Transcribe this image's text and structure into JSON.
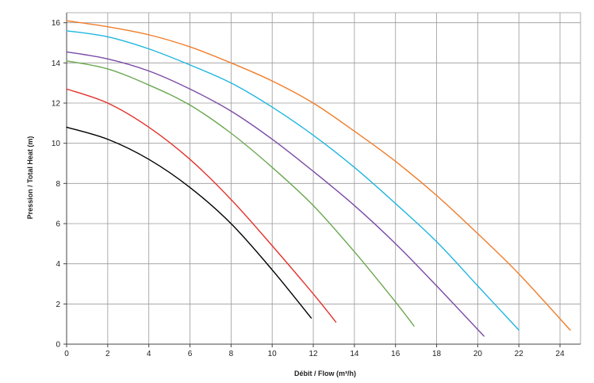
{
  "chart_data": {
    "type": "line",
    "xlabel": "Débit / Flow (m³/h)",
    "ylabel": "Pression / Total Heat (m)",
    "xlim": [
      0,
      25
    ],
    "ylim": [
      0,
      16.5
    ],
    "xticks": [
      0,
      2,
      4,
      6,
      8,
      10,
      12,
      14,
      16,
      18,
      20,
      22,
      24
    ],
    "yticks": [
      0,
      2,
      4,
      6,
      8,
      10,
      12,
      14,
      16
    ],
    "grid": true,
    "series": [
      {
        "color": "#000000",
        "x": [
          0,
          2,
          4,
          6,
          8,
          10,
          11.9
        ],
        "y": [
          10.8,
          10.2,
          9.2,
          7.8,
          6.0,
          3.7,
          1.3
        ]
      },
      {
        "color": "#e3322b",
        "x": [
          0,
          2,
          4,
          6,
          8,
          10,
          12,
          13.1
        ],
        "y": [
          12.7,
          12.0,
          10.8,
          9.2,
          7.2,
          4.9,
          2.5,
          1.1
        ]
      },
      {
        "color": "#6aa84f",
        "x": [
          0,
          2,
          4,
          6,
          8,
          10,
          12,
          14,
          16,
          16.9
        ],
        "y": [
          14.1,
          13.7,
          12.9,
          11.9,
          10.5,
          8.8,
          6.9,
          4.6,
          2.1,
          0.9
        ]
      },
      {
        "color": "#7b4aa6",
        "x": [
          0,
          2,
          4,
          6,
          8,
          10,
          12,
          14,
          16,
          18,
          20.3
        ],
        "y": [
          14.55,
          14.2,
          13.6,
          12.7,
          11.6,
          10.2,
          8.6,
          6.9,
          5.0,
          2.9,
          0.4
        ]
      },
      {
        "color": "#1fb6e0",
        "x": [
          0,
          2,
          4,
          6,
          8,
          10,
          12,
          14,
          16,
          18,
          20,
          22
        ],
        "y": [
          15.6,
          15.3,
          14.7,
          13.9,
          13.0,
          11.8,
          10.4,
          8.8,
          7.0,
          5.1,
          2.9,
          0.7
        ]
      },
      {
        "color": "#f07d2a",
        "x": [
          0,
          2,
          4,
          6,
          8,
          10,
          12,
          14,
          16,
          18,
          20,
          22,
          24.5
        ],
        "y": [
          16.1,
          15.8,
          15.4,
          14.8,
          14.0,
          13.1,
          12.0,
          10.6,
          9.1,
          7.4,
          5.5,
          3.5,
          0.7
        ]
      }
    ]
  }
}
